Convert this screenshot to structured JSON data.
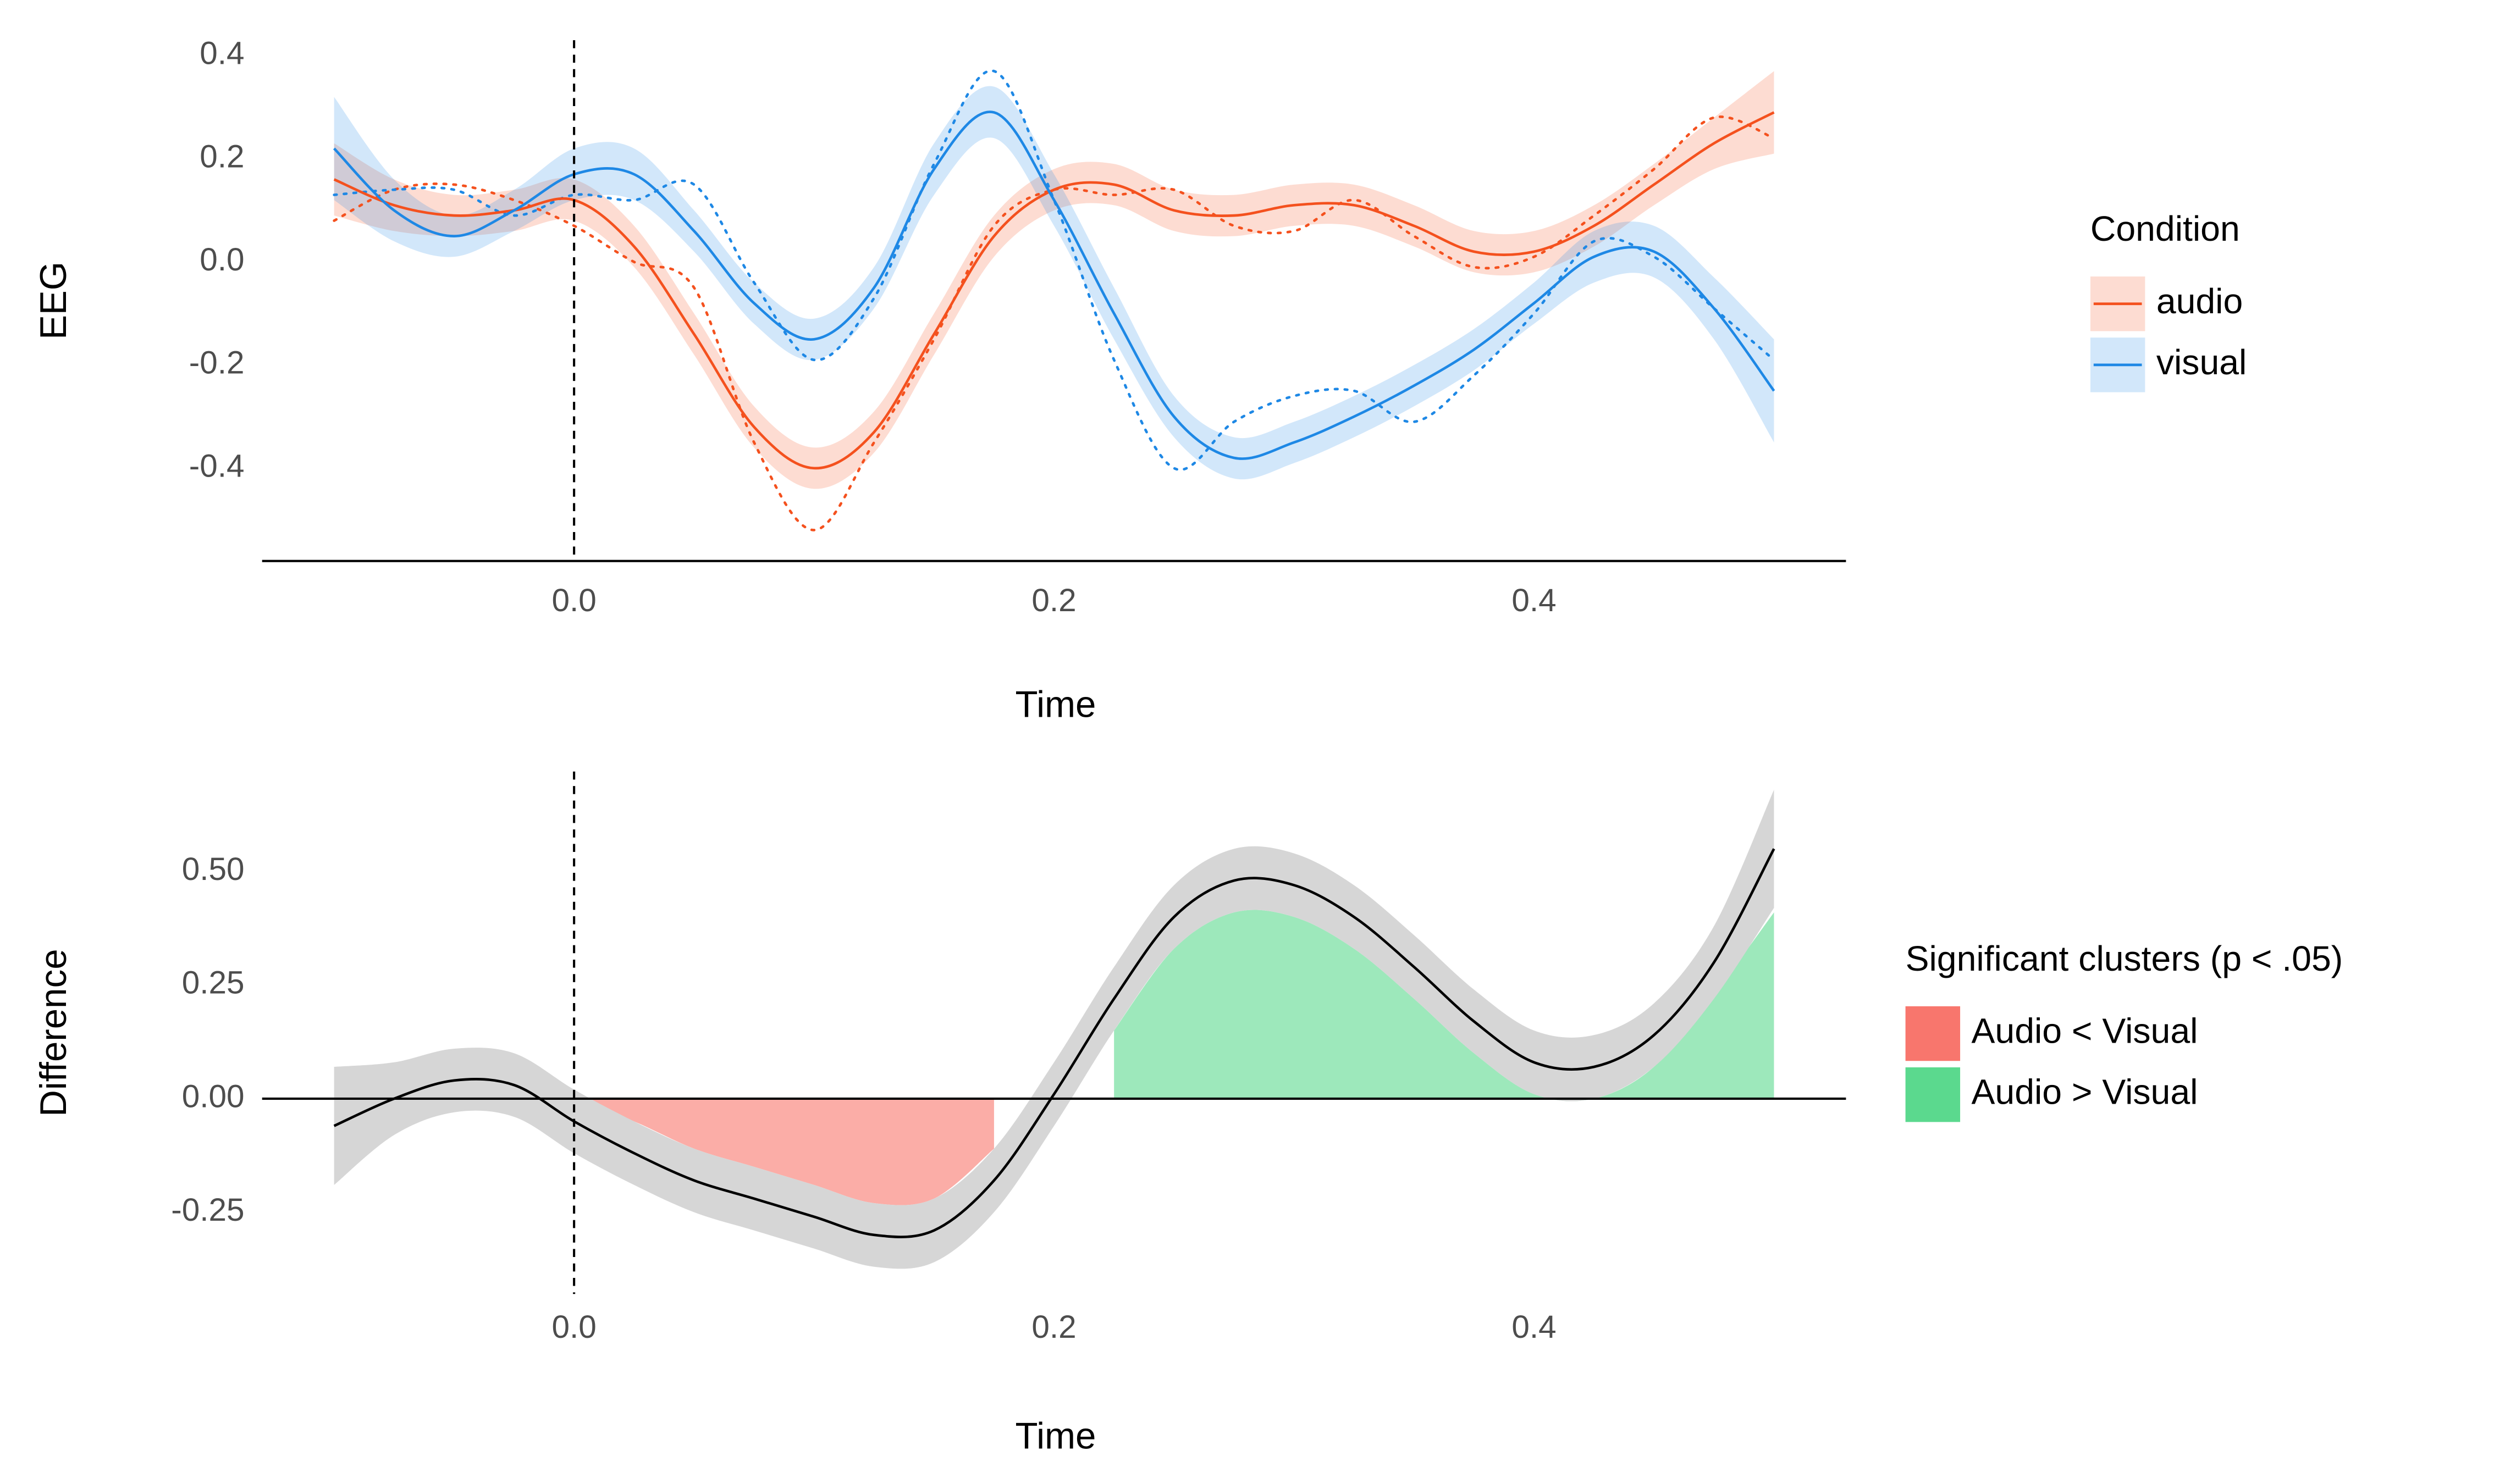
{
  "chart_data": [
    {
      "type": "line",
      "xlabel": "Time",
      "ylabel": "EEG",
      "legend_title": "Condition",
      "axis_line": true,
      "vline": 0,
      "x": [
        -0.1,
        -0.075,
        -0.05,
        -0.025,
        0,
        0.025,
        0.05,
        0.075,
        0.1,
        0.125,
        0.15,
        0.175,
        0.2,
        0.225,
        0.25,
        0.275,
        0.3,
        0.325,
        0.35,
        0.375,
        0.4,
        0.425,
        0.45,
        0.475,
        0.5
      ],
      "xlim": [
        -0.13,
        0.53
      ],
      "ylim": [
        -0.58,
        0.43
      ],
      "xticks": [
        {
          "value": 0,
          "label": "0.0"
        },
        0.2,
        0.4
      ],
      "yticks": [
        0.4,
        0.2,
        {
          "value": 0,
          "label": "0.0"
        },
        -0.2,
        -0.4
      ],
      "series": [
        {
          "name": "audio",
          "color": "#f4511e",
          "values": [
            0.16,
            0.11,
            0.09,
            0.1,
            0.12,
            0.03,
            -0.14,
            -0.32,
            -0.4,
            -0.33,
            -0.14,
            0.05,
            0.14,
            0.15,
            0.1,
            0.09,
            0.11,
            0.11,
            0.07,
            0.02,
            0.02,
            0.07,
            0.15,
            0.23,
            0.29
          ],
          "ci": [
            0.07,
            0.05,
            0.04,
            0.04,
            0.04,
            0.04,
            0.04,
            0.04,
            0.04,
            0.04,
            0.04,
            0.04,
            0.04,
            0.04,
            0.04,
            0.04,
            0.04,
            0.04,
            0.04,
            0.04,
            0.04,
            0.04,
            0.04,
            0.05,
            0.08
          ],
          "raw": [
            0.08,
            0.14,
            0.15,
            0.12,
            0.07,
            0.0,
            -0.05,
            -0.35,
            -0.52,
            -0.35,
            -0.15,
            0.07,
            0.14,
            0.13,
            0.14,
            0.07,
            0.06,
            0.12,
            0.05,
            -0.01,
            0.01,
            0.09,
            0.18,
            0.28,
            0.24
          ]
        },
        {
          "name": "visual",
          "color": "#1e88e5",
          "values": [
            0.22,
            0.1,
            0.05,
            0.1,
            0.17,
            0.17,
            0.06,
            -0.08,
            -0.15,
            -0.05,
            0.18,
            0.29,
            0.12,
            -0.1,
            -0.3,
            -0.38,
            -0.35,
            -0.3,
            -0.24,
            -0.17,
            -0.08,
            0.01,
            0.02,
            -0.09,
            -0.25
          ],
          "ci": [
            0.1,
            0.06,
            0.04,
            0.04,
            0.05,
            0.05,
            0.04,
            0.04,
            0.04,
            0.04,
            0.05,
            0.05,
            0.05,
            0.05,
            0.04,
            0.04,
            0.04,
            0.04,
            0.04,
            0.04,
            0.04,
            0.05,
            0.05,
            0.06,
            0.1
          ],
          "raw": [
            0.13,
            0.14,
            0.14,
            0.09,
            0.13,
            0.12,
            0.15,
            -0.04,
            -0.19,
            -0.07,
            0.19,
            0.37,
            0.12,
            -0.19,
            -0.4,
            -0.31,
            -0.26,
            -0.25,
            -0.31,
            -0.22,
            -0.1,
            0.04,
            0.01,
            -0.09,
            -0.19
          ]
        }
      ]
    },
    {
      "type": "area",
      "xlabel": "Time",
      "ylabel": "Difference",
      "legend_title": "Significant clusters (p < .05)",
      "hline": 0,
      "vline": 0,
      "x": [
        -0.1,
        -0.075,
        -0.05,
        -0.025,
        0,
        0.025,
        0.05,
        0.075,
        0.1,
        0.125,
        0.15,
        0.175,
        0.2,
        0.225,
        0.25,
        0.275,
        0.3,
        0.325,
        0.35,
        0.375,
        0.4,
        0.425,
        0.45,
        0.475,
        0.5
      ],
      "xlim": [
        -0.13,
        0.53
      ],
      "ylim": [
        -0.43,
        0.72
      ],
      "xticks": [
        {
          "value": 0,
          "label": "0.0"
        },
        0.2,
        0.4
      ],
      "yticks": [
        {
          "value": 0.5,
          "label": "0.50"
        },
        0.25,
        {
          "value": 0,
          "label": "0.00"
        },
        -0.25
      ],
      "color": "#000000",
      "ci_color": "#d6d6d6",
      "values": [
        -0.06,
        0.0,
        0.04,
        0.03,
        -0.05,
        -0.12,
        -0.18,
        -0.22,
        -0.26,
        -0.3,
        -0.29,
        -0.18,
        0.01,
        0.22,
        0.4,
        0.48,
        0.47,
        0.4,
        0.29,
        0.17,
        0.08,
        0.07,
        0.14,
        0.3,
        0.55
      ],
      "ci": [
        0.13,
        0.08,
        0.07,
        0.07,
        0.07,
        0.07,
        0.07,
        0.07,
        0.07,
        0.07,
        0.07,
        0.07,
        0.07,
        0.07,
        0.07,
        0.07,
        0.07,
        0.07,
        0.07,
        0.07,
        0.07,
        0.07,
        0.07,
        0.08,
        0.13
      ],
      "clusters": [
        {
          "name": "Audio < Visual",
          "color": "#f8766d",
          "values": [
            null,
            null,
            null,
            null,
            0,
            -0.05,
            -0.11,
            -0.15,
            -0.19,
            -0.23,
            -0.22,
            -0.11,
            null,
            null,
            null,
            null,
            null,
            null,
            null,
            null,
            null,
            null,
            null,
            null,
            null
          ]
        },
        {
          "name": "Audio > Visual",
          "color": "#5bd98e",
          "values": [
            null,
            null,
            null,
            null,
            null,
            null,
            null,
            null,
            null,
            null,
            null,
            null,
            null,
            0.15,
            0.33,
            0.41,
            0.4,
            0.33,
            0.22,
            0.1,
            0.01,
            0.0,
            0.07,
            0.23,
            0.41
          ]
        }
      ]
    }
  ]
}
